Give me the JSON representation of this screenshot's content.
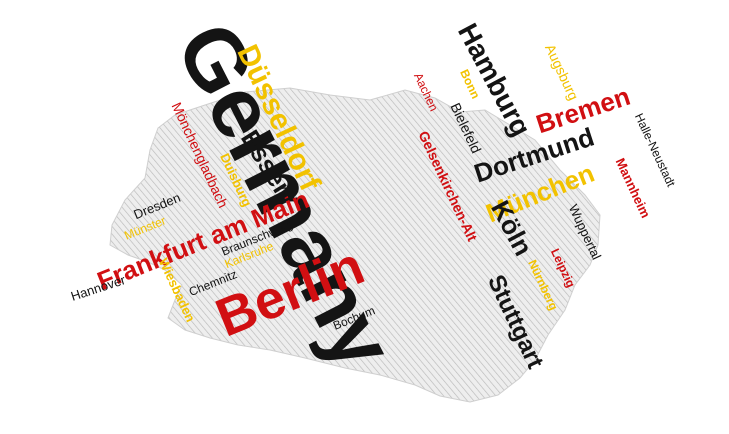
{
  "colors": {
    "black": "#141414",
    "red": "#d10f12",
    "gold": "#f2c200",
    "map_fill": "#eeeeee",
    "map_hatch": "#b9b9b9",
    "map_outline": "#cfcfcf"
  },
  "words": [
    {
      "id": "germany",
      "text": "Germany",
      "color": "black"
    },
    {
      "id": "berlin",
      "text": "Berlin",
      "color": "red"
    },
    {
      "id": "frankfurt-am-main",
      "text": "Frankfurt am Main",
      "color": "red"
    },
    {
      "id": "dusseldorf",
      "text": "Düsseldorf",
      "color": "gold"
    },
    {
      "id": "hamburg",
      "text": "Hamburg",
      "color": "black"
    },
    {
      "id": "bremen",
      "text": "Bremen",
      "color": "red"
    },
    {
      "id": "dortmund",
      "text": "Dortmund",
      "color": "black"
    },
    {
      "id": "munchen",
      "text": "München",
      "color": "gold"
    },
    {
      "id": "koln",
      "text": "Köln",
      "color": "black"
    },
    {
      "id": "stuttgart",
      "text": "Stuttgart",
      "color": "black"
    },
    {
      "id": "essen",
      "text": "Essen",
      "color": "black"
    },
    {
      "id": "bielefeld",
      "text": "Bielefeld",
      "color": "black"
    },
    {
      "id": "bonn",
      "text": "Bonn",
      "color": "gold"
    },
    {
      "id": "aachen",
      "text": "Aachen",
      "color": "red"
    },
    {
      "id": "augsburg",
      "text": "Augsburg",
      "color": "gold"
    },
    {
      "id": "gelsenkirchen-alt",
      "text": "Gelsenkirchen-Alt",
      "color": "red"
    },
    {
      "id": "halle-neustadt",
      "text": "Halle-Neustadt",
      "color": "black"
    },
    {
      "id": "mannheim",
      "text": "Mannheim",
      "color": "red"
    },
    {
      "id": "wuppertal",
      "text": "Wuppertal",
      "color": "black"
    },
    {
      "id": "leipzig",
      "text": "Leipzig",
      "color": "red"
    },
    {
      "id": "nurnberg",
      "text": "Nürnberg",
      "color": "gold"
    },
    {
      "id": "monchengladbach",
      "text": "Mönchengladbach",
      "color": "red"
    },
    {
      "id": "duisburg",
      "text": "Duisburg",
      "color": "gold"
    },
    {
      "id": "dresden",
      "text": "Dresden",
      "color": "black"
    },
    {
      "id": "munster",
      "text": "Münster",
      "color": "gold"
    },
    {
      "id": "braunschweig",
      "text": "Braunschweig",
      "color": "black"
    },
    {
      "id": "karlsruhe",
      "text": "Karlsruhe",
      "color": "gold"
    },
    {
      "id": "chemnitz",
      "text": "Chemnitz",
      "color": "black"
    },
    {
      "id": "hannover",
      "text": "Hannover",
      "color": "black"
    },
    {
      "id": "wiesbaden",
      "text": "Wiesbaden",
      "color": "gold"
    },
    {
      "id": "bochum",
      "text": "Bochum",
      "color": "black"
    }
  ]
}
